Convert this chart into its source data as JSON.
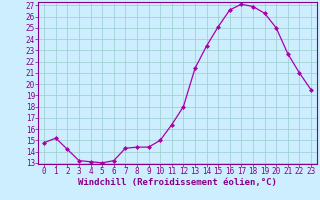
{
  "x": [
    0,
    1,
    2,
    3,
    4,
    5,
    6,
    7,
    8,
    9,
    10,
    11,
    12,
    13,
    14,
    15,
    16,
    17,
    18,
    19,
    20,
    21,
    22,
    23
  ],
  "y": [
    14.8,
    15.2,
    14.2,
    13.2,
    13.1,
    13.0,
    13.2,
    14.3,
    14.4,
    14.4,
    15.0,
    16.4,
    18.0,
    21.4,
    23.4,
    25.1,
    26.6,
    27.1,
    26.9,
    26.3,
    25.0,
    22.7,
    21.0,
    19.5
  ],
  "line_color": "#aa00aa",
  "marker": "D",
  "marker_size": 2.0,
  "bg_color": "#cceeff",
  "grid_color": "#99cccc",
  "ylim": [
    13,
    27
  ],
  "xlim": [
    -0.5,
    23.5
  ],
  "yticks": [
    13,
    14,
    15,
    16,
    17,
    18,
    19,
    20,
    21,
    22,
    23,
    24,
    25,
    26,
    27
  ],
  "xticks": [
    0,
    1,
    2,
    3,
    4,
    5,
    6,
    7,
    8,
    9,
    10,
    11,
    12,
    13,
    14,
    15,
    16,
    17,
    18,
    19,
    20,
    21,
    22,
    23
  ],
  "xlabel": "Windchill (Refroidissement éolien,°C)",
  "tick_color": "#880088",
  "tick_fontsize": 5.5,
  "label_fontsize": 6.5,
  "spine_color": "#880088",
  "linewidth": 0.9
}
